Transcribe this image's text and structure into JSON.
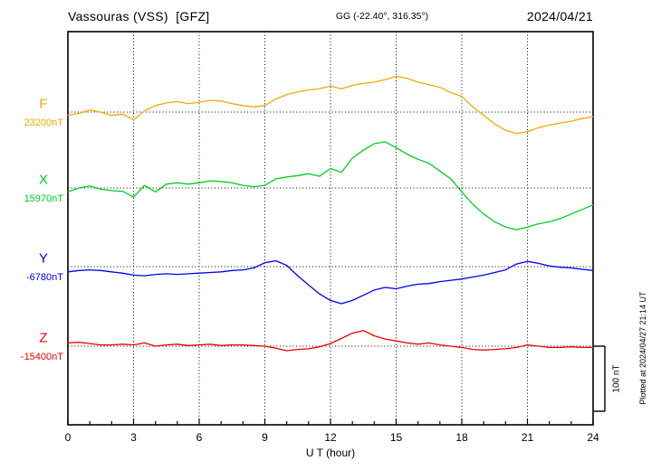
{
  "header": {
    "station": "Vassouras (VSS)  [GFZ]",
    "coords": "GG (-22.40°, 316.35°)",
    "date": "2024/04/21"
  },
  "side": {
    "scale_label": "100 nT",
    "plotted_at": "Plotted at 2024/04/27 21:14 UT"
  },
  "axis": {
    "xlabel": "U T (hour)",
    "ticks": [
      0,
      3,
      6,
      9,
      12,
      15,
      18,
      21,
      24
    ],
    "x_range": [
      0,
      24
    ]
  },
  "chart_data": {
    "type": "line",
    "title": "Vassouras (VSS) [GFZ] magnetogram 2024/04/21",
    "xlabel": "U T (hour)",
    "x_start": 0,
    "x_step_hours": 0.5,
    "x_range": [
      0,
      24
    ],
    "units": "nT",
    "scale_bar_nT": 100,
    "grid": "dotted vertical every 3 h, dotted horizontal baseline per channel",
    "series": [
      {
        "name": "F",
        "baseline_label": "23200nT",
        "baseline_value": 23200,
        "color": "#f5a800",
        "offsets_nT": [
          -5,
          -2,
          3,
          0,
          -5,
          -3,
          -12,
          2,
          10,
          14,
          16,
          13,
          15,
          18,
          17,
          13,
          10,
          8,
          10,
          20,
          27,
          31,
          34,
          36,
          40,
          36,
          41,
          44,
          46,
          50,
          55,
          52,
          46,
          42,
          38,
          30,
          24,
          8,
          -5,
          -18,
          -28,
          -33,
          -30,
          -24,
          -20,
          -17,
          -14,
          -10,
          -7
        ]
      },
      {
        "name": "X",
        "baseline_label": "15970nT",
        "baseline_value": 15970,
        "color": "#00cc22",
        "offsets_nT": [
          -6,
          0,
          3,
          -2,
          -4,
          -5,
          -14,
          4,
          -6,
          6,
          8,
          6,
          8,
          11,
          10,
          8,
          4,
          2,
          4,
          14,
          17,
          19,
          22,
          18,
          30,
          24,
          46,
          58,
          68,
          71,
          62,
          52,
          44,
          38,
          26,
          14,
          -6,
          -25,
          -40,
          -52,
          -60,
          -64,
          -60,
          -55,
          -52,
          -47,
          -40,
          -33,
          -26
        ]
      },
      {
        "name": "Y",
        "baseline_label": "-6780nT",
        "baseline_value": -6780,
        "color": "#0000ee",
        "offsets_nT": [
          -8,
          -6,
          -5,
          -6,
          -8,
          -10,
          -13,
          -14,
          -12,
          -11,
          -12,
          -11,
          -10,
          -9,
          -8,
          -6,
          -5,
          -2,
          6,
          9,
          2,
          -14,
          -28,
          -42,
          -52,
          -57,
          -52,
          -44,
          -36,
          -32,
          -34,
          -30,
          -27,
          -26,
          -23,
          -21,
          -19,
          -16,
          -13,
          -9,
          -5,
          4,
          8,
          5,
          1,
          -1,
          -2,
          -4,
          -6
        ]
      },
      {
        "name": "Z",
        "baseline_label": "-15400nT",
        "baseline_value": -15400,
        "color": "#ee0000",
        "offsets_nT": [
          5,
          6,
          4,
          2,
          2,
          3,
          2,
          5,
          0,
          2,
          3,
          1,
          2,
          3,
          1,
          2,
          2,
          1,
          0,
          -3,
          -7,
          -5,
          -4,
          -1,
          4,
          12,
          20,
          24,
          16,
          11,
          8,
          5,
          3,
          5,
          2,
          0,
          -2,
          -5,
          -6,
          -5,
          -4,
          -2,
          2,
          0,
          -2,
          -2,
          -1,
          -2,
          -2
        ]
      }
    ]
  }
}
